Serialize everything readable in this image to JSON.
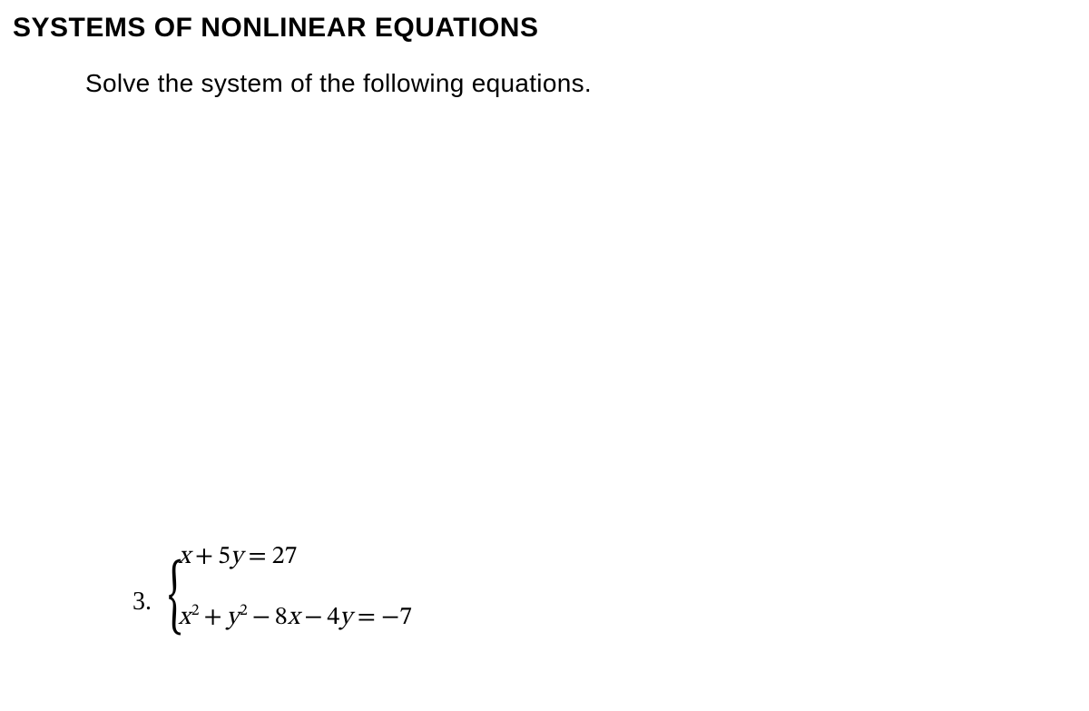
{
  "title": "SYSTEMS OF NONLINEAR EQUATIONS",
  "instruction": "Solve the system of the following equations.",
  "problem": {
    "number": "3.",
    "equations": {
      "eq1": {
        "x_var": "x",
        "plus": "+",
        "coef_y": "5",
        "y_var": "y",
        "equals": "=",
        "rhs": "27"
      },
      "eq2": {
        "x_var": "x",
        "x_exp": "2",
        "plus1": "+",
        "y_var": "y",
        "y_exp": "2",
        "minus1": "−",
        "coef_x": "8",
        "x_var2": "x",
        "minus2": "−",
        "coef_y": "4",
        "y_var2": "y",
        "equals": "=",
        "neg": "−",
        "rhs": "7"
      }
    }
  }
}
